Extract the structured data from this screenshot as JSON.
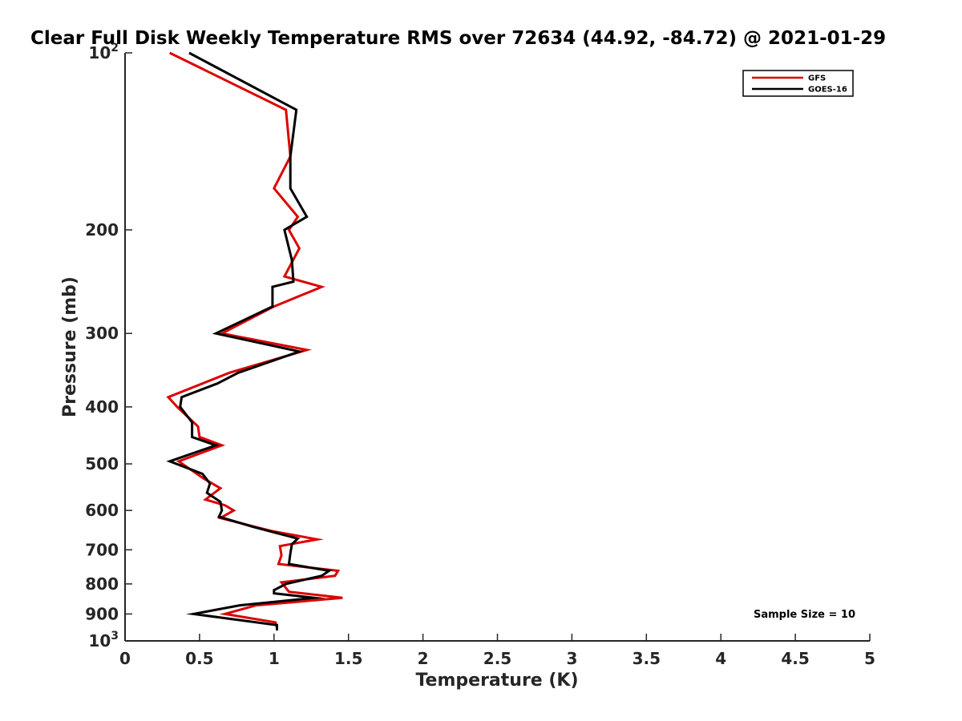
{
  "chart_data": {
    "type": "line",
    "title": "Clear Full Disk Weekly Temperature RMS over 72634 (44.92, -84.72) @ 2021-01-29",
    "xlabel": "Temperature (K)",
    "ylabel": "Pressure (mb)",
    "xlim": [
      0,
      5
    ],
    "ylim": [
      100,
      1000
    ],
    "yscale": "log",
    "yreverse": true,
    "x_ticks": [
      "0",
      "0.5",
      "1",
      "1.5",
      "2",
      "2.5",
      "3",
      "3.5",
      "4",
      "4.5",
      "5"
    ],
    "y_ticks": [
      {
        "value": 100,
        "base": "10",
        "exp": "2"
      },
      {
        "value": 200,
        "label": "200"
      },
      {
        "value": 300,
        "label": "300"
      },
      {
        "value": 400,
        "label": "400"
      },
      {
        "value": 500,
        "label": "500"
      },
      {
        "value": 600,
        "label": "600"
      },
      {
        "value": 700,
        "label": "700"
      },
      {
        "value": 800,
        "label": "800"
      },
      {
        "value": 900,
        "label": "900"
      },
      {
        "value": 1000,
        "base": "10",
        "exp": "3"
      }
    ],
    "legend_position": "top-right",
    "annotation": "Sample Size = 10",
    "series": [
      {
        "name": "GFS",
        "color": "#dd0000",
        "points": [
          [
            0.3,
            100
          ],
          [
            1.08,
            125
          ],
          [
            1.11,
            150
          ],
          [
            1.0,
            170
          ],
          [
            1.16,
            190
          ],
          [
            1.1,
            200
          ],
          [
            1.17,
            215
          ],
          [
            1.07,
            240
          ],
          [
            1.32,
            250
          ],
          [
            1.0,
            270
          ],
          [
            0.65,
            300
          ],
          [
            1.22,
            320
          ],
          [
            0.7,
            350
          ],
          [
            0.29,
            385
          ],
          [
            0.35,
            400
          ],
          [
            0.49,
            432
          ],
          [
            0.5,
            450
          ],
          [
            0.65,
            465
          ],
          [
            0.36,
            495
          ],
          [
            0.53,
            530
          ],
          [
            0.64,
            550
          ],
          [
            0.54,
            575
          ],
          [
            0.67,
            588
          ],
          [
            0.73,
            600
          ],
          [
            0.64,
            618
          ],
          [
            0.98,
            650
          ],
          [
            1.29,
            672
          ],
          [
            1.04,
            690
          ],
          [
            1.05,
            715
          ],
          [
            1.03,
            740
          ],
          [
            1.43,
            760
          ],
          [
            1.41,
            775
          ],
          [
            1.05,
            795
          ],
          [
            1.1,
            825
          ],
          [
            1.46,
            845
          ],
          [
            0.88,
            870
          ],
          [
            0.67,
            900
          ],
          [
            1.01,
            930
          ],
          [
            1.02,
            950
          ]
        ]
      },
      {
        "name": "GOES-16",
        "color": "#000000",
        "points": [
          [
            0.43,
            100
          ],
          [
            1.15,
            125
          ],
          [
            1.11,
            150
          ],
          [
            1.11,
            170
          ],
          [
            1.22,
            190
          ],
          [
            1.07,
            200
          ],
          [
            1.12,
            225
          ],
          [
            1.13,
            245
          ],
          [
            0.99,
            250
          ],
          [
            0.99,
            270
          ],
          [
            0.61,
            300
          ],
          [
            1.17,
            322
          ],
          [
            0.76,
            350
          ],
          [
            0.62,
            365
          ],
          [
            0.38,
            385
          ],
          [
            0.37,
            400
          ],
          [
            0.45,
            425
          ],
          [
            0.45,
            450
          ],
          [
            0.61,
            465
          ],
          [
            0.3,
            495
          ],
          [
            0.52,
            520
          ],
          [
            0.57,
            540
          ],
          [
            0.55,
            560
          ],
          [
            0.64,
            580
          ],
          [
            0.65,
            600
          ],
          [
            0.63,
            615
          ],
          [
            0.86,
            640
          ],
          [
            1.16,
            670
          ],
          [
            1.12,
            685
          ],
          [
            1.11,
            710
          ],
          [
            1.1,
            740
          ],
          [
            1.37,
            760
          ],
          [
            1.32,
            775
          ],
          [
            1.08,
            800
          ],
          [
            1.0,
            820
          ],
          [
            1.0,
            830
          ],
          [
            1.27,
            845
          ],
          [
            0.77,
            870
          ],
          [
            0.46,
            900
          ],
          [
            1.02,
            940
          ],
          [
            1.02,
            960
          ]
        ]
      }
    ]
  }
}
